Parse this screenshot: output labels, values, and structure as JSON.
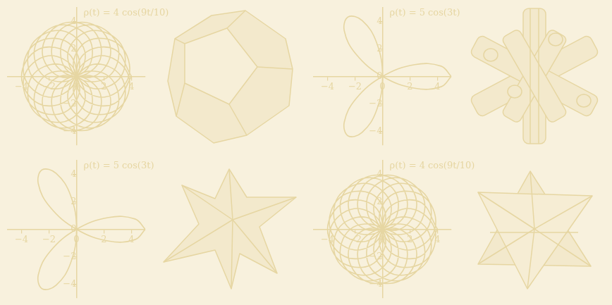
{
  "chart_data": [
    {
      "type": "line",
      "title": "ρ(t) = 4 cos(9t/10)",
      "color": "#e6d6a2",
      "grid": false,
      "xlim": [
        -5,
        5
      ],
      "ylim": [
        -5,
        5
      ],
      "xticks": [
        {
          "value": -4,
          "label": "−4"
        },
        {
          "value": -2,
          "label": "−2"
        },
        0,
        2,
        4
      ],
      "yticks": [
        {
          "value": -4,
          "label": "−4"
        },
        {
          "value": -2,
          "label": "−2"
        },
        0,
        2,
        4
      ],
      "x": [
        4,
        2.73,
        0.53,
        0.15,
        2.06,
        3.8,
        3.13,
        0.85,
        -0.23,
        1.19,
        3.24,
        3.23,
        1.08,
        -0.6,
        0.2,
        2.35,
        3.01,
        1.21,
        -0.9,
        -0.8,
        1.24,
        2.49,
        1.23,
        -1.12,
        -1.73,
        0,
        1.73,
        1.12,
        -1.23,
        -2.49,
        -1.24,
        0.8,
        0.9,
        -1.21,
        -3.01,
        -2.35,
        -0.2,
        0.6,
        -1.08,
        -3.23,
        -3.24,
        -1.19,
        0.23,
        -0.85,
        -3.13,
        -3.8,
        -2.06,
        -0.15,
        -0.53,
        -2.73,
        -4,
        -2.73,
        -0.53,
        -0.15,
        -2.06,
        -3.8,
        -3.13,
        -0.85,
        0.23,
        -1.19,
        -3.24,
        -3.23,
        -1.08,
        0.6,
        -0.2,
        -2.35,
        -3.01,
        -1.21,
        0.9,
        0.8,
        -1.24,
        -2.49,
        -1.23,
        1.12,
        1.73,
        0,
        -1.73,
        -1.12,
        1.23,
        2.49,
        1.24,
        -0.8,
        -0.9,
        1.21,
        3.01,
        2.35,
        0.2,
        -0.6,
        1.08,
        3.23,
        3.24,
        1.19,
        -0.23,
        0.85,
        3.13,
        3.8,
        2.06,
        0.15,
        0.53,
        2.73,
        4
      ],
      "values": [
        0,
        1.99,
        1.62,
        -0.48,
        -1.5,
        0,
        2.28,
        2.6,
        0.71,
        -0.87,
        0,
        2.35,
        3.33,
        1.83,
        -0.15,
        0,
        2.19,
        3.74,
        2.77,
        0.58,
        0,
        1.81,
        3.77,
        3.44,
        1.26,
        0,
        1.26,
        3.44,
        3.77,
        1.81,
        0,
        0.58,
        2.77,
        3.74,
        2.19,
        0,
        -0.15,
        1.83,
        3.33,
        2.35,
        0,
        -0.87,
        0.71,
        2.6,
        2.28,
        0,
        -1.5,
        -0.48,
        1.62,
        1.99,
        0,
        -1.99,
        -1.62,
        0.48,
        1.5,
        0,
        -2.28,
        -2.6,
        -0.71,
        0.87,
        0,
        -2.35,
        -3.33,
        -1.83,
        0.15,
        0,
        -2.19,
        -3.74,
        -2.77,
        -0.58,
        0,
        -1.81,
        -3.77,
        -3.44,
        -1.26,
        0,
        -1.26,
        -3.44,
        -3.77,
        -1.81,
        0,
        -0.58,
        -2.77,
        -3.74,
        -2.19,
        0,
        0.15,
        -1.83,
        -3.33,
        -2.35,
        0,
        0.87,
        -0.71,
        -2.6,
        -2.28,
        0,
        1.5,
        0.48,
        -1.62,
        -1.99,
        0
      ]
    },
    {
      "type": "line",
      "title": "ρ(t) = 5 cos(3t)",
      "color": "#e6d6a2",
      "grid": false,
      "xlim": [
        -5,
        5
      ],
      "ylim": [
        -5,
        5
      ],
      "xticks": [
        {
          "value": -4,
          "label": "−4"
        },
        {
          "value": -2,
          "label": "−2"
        },
        0,
        2,
        4
      ],
      "yticks": [
        {
          "value": -4,
          "label": "−4"
        },
        {
          "value": -2,
          "label": "−2"
        },
        0,
        2,
        4
      ],
      "x": [
        5,
        4.26,
        2.35,
        0,
        -1.92,
        -2.78,
        -2.5,
        -1.48,
        -0.43,
        0,
        -0.43,
        -1.48,
        -2.5,
        -2.78,
        -1.92,
        0,
        2.35,
        4.26,
        5
      ],
      "values": [
        0,
        0.75,
        0.86,
        0,
        -1.61,
        -3.32,
        -4.33,
        -4.07,
        -2.46,
        0,
        2.46,
        4.07,
        4.33,
        3.32,
        1.61,
        0,
        -0.86,
        -0.75,
        0
      ]
    },
    {
      "type": "line",
      "title": "ρ(t) = 5 cos(3t)",
      "color": "#e6d6a2",
      "grid": false,
      "xlim": [
        -5,
        5
      ],
      "ylim": [
        -5,
        5
      ],
      "xticks": [
        {
          "value": -4,
          "label": "−4"
        },
        {
          "value": -2,
          "label": "−2"
        },
        0,
        2,
        4
      ],
      "yticks": [
        {
          "value": -4,
          "label": "−4"
        },
        {
          "value": -2,
          "label": "−2"
        },
        0,
        2,
        4
      ],
      "x": [
        5,
        4.26,
        2.35,
        0,
        -1.92,
        -2.78,
        -2.5,
        -1.48,
        -0.43,
        0,
        -0.43,
        -1.48,
        -2.5,
        -2.78,
        -1.92,
        0,
        2.35,
        4.26,
        5
      ],
      "values": [
        0,
        0.75,
        0.86,
        0,
        -1.61,
        -3.32,
        -4.33,
        -4.07,
        -2.46,
        0,
        2.46,
        4.07,
        4.33,
        3.32,
        1.61,
        0,
        -0.86,
        -0.75,
        0
      ]
    },
    {
      "type": "line",
      "title": "ρ(t) = 4 cos(9t/10)",
      "color": "#e6d6a2",
      "grid": false,
      "xlim": [
        -5,
        5
      ],
      "ylim": [
        -5,
        5
      ],
      "xticks": [
        {
          "value": -4,
          "label": "−4"
        },
        {
          "value": -2,
          "label": "−2"
        },
        0,
        2,
        4
      ],
      "yticks": [
        {
          "value": -4,
          "label": "−4"
        },
        {
          "value": -2,
          "label": "−2"
        },
        0,
        2,
        4
      ],
      "x": [
        4,
        2.73,
        0.53,
        0.15,
        2.06,
        3.8,
        3.13,
        0.85,
        -0.23,
        1.19,
        3.24,
        3.23,
        1.08,
        -0.6,
        0.2,
        2.35,
        3.01,
        1.21,
        -0.9,
        -0.8,
        1.24,
        2.49,
        1.23,
        -1.12,
        -1.73,
        0,
        1.73,
        1.12,
        -1.23,
        -2.49,
        -1.24,
        0.8,
        0.9,
        -1.21,
        -3.01,
        -2.35,
        -0.2,
        0.6,
        -1.08,
        -3.23,
        -3.24,
        -1.19,
        0.23,
        -0.85,
        -3.13,
        -3.8,
        -2.06,
        -0.15,
        -0.53,
        -2.73,
        -4,
        -2.73,
        -0.53,
        -0.15,
        -2.06,
        -3.8,
        -3.13,
        -0.85,
        0.23,
        -1.19,
        -3.24,
        -3.23,
        -1.08,
        0.6,
        -0.2,
        -2.35,
        -3.01,
        -1.21,
        0.9,
        0.8,
        -1.24,
        -2.49,
        -1.23,
        1.12,
        1.73,
        0,
        -1.73,
        -1.12,
        1.23,
        2.49,
        1.24,
        -0.8,
        -0.9,
        1.21,
        3.01,
        2.35,
        0.2,
        -0.6,
        1.08,
        3.23,
        3.24,
        1.19,
        -0.23,
        0.85,
        3.13,
        3.8,
        2.06,
        0.15,
        0.53,
        2.73,
        4
      ],
      "values": [
        0,
        1.99,
        1.62,
        -0.48,
        -1.5,
        0,
        2.28,
        2.6,
        0.71,
        -0.87,
        0,
        2.35,
        3.33,
        1.83,
        -0.15,
        0,
        2.19,
        3.74,
        2.77,
        0.58,
        0,
        1.81,
        3.77,
        3.44,
        1.26,
        0,
        1.26,
        3.44,
        3.77,
        1.81,
        0,
        0.58,
        2.77,
        3.74,
        2.19,
        0,
        -0.15,
        1.83,
        3.33,
        2.35,
        0,
        -0.87,
        0.71,
        2.6,
        2.28,
        0,
        -1.5,
        -0.48,
        1.62,
        1.99,
        0,
        -1.99,
        -1.62,
        0.48,
        1.5,
        0,
        -2.28,
        -2.6,
        -0.71,
        0.87,
        0,
        -2.35,
        -3.33,
        -1.83,
        0.15,
        0,
        -2.19,
        -3.74,
        -2.77,
        -0.58,
        0,
        -1.81,
        -3.77,
        -3.44,
        -1.26,
        0,
        -1.26,
        -3.44,
        -3.77,
        -1.81,
        0,
        -0.58,
        -2.77,
        -3.74,
        -2.19,
        0,
        0.15,
        -1.83,
        -3.33,
        -2.35,
        0,
        0.87,
        -0.71,
        -2.6,
        -2.28,
        0,
        1.5,
        0.48,
        -1.62,
        -1.99,
        0
      ]
    }
  ]
}
